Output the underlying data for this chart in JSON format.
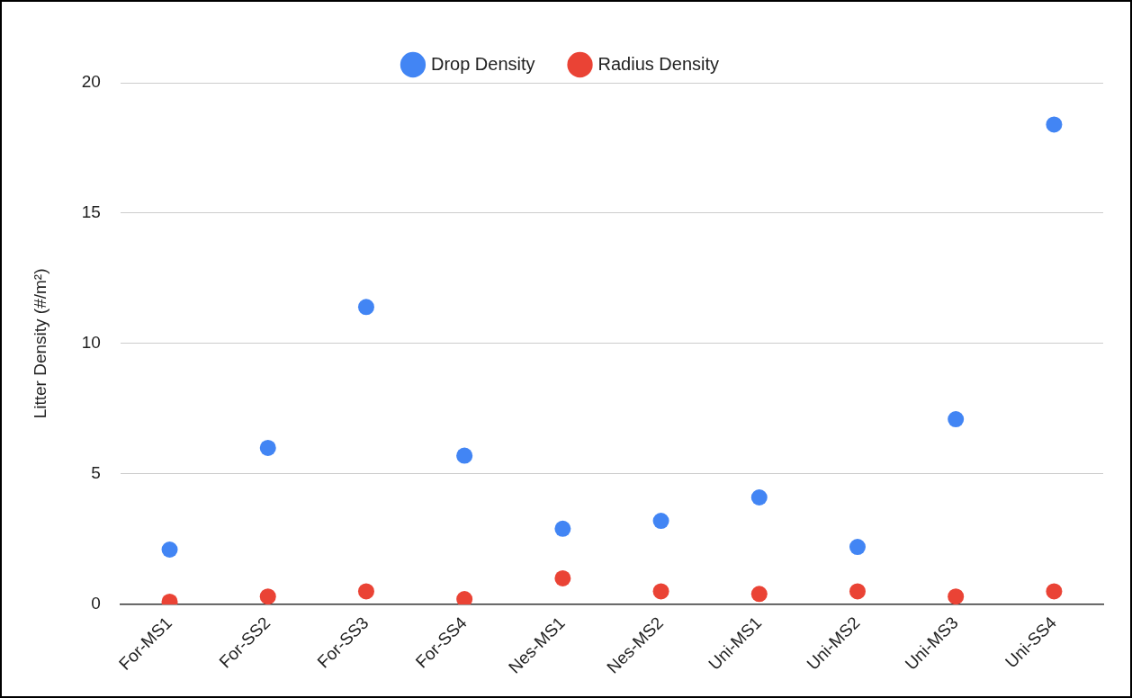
{
  "chart_data": {
    "type": "scatter",
    "ylabel": "Litter Density (#/m²)",
    "categories": [
      "For-MS1",
      "For-SS2",
      "For-SS3",
      "For-SS4",
      "Nes-MS1",
      "Nes-MS2",
      "Uni-MS1",
      "Uni-MS2",
      "Uni-MS3",
      "Uni-SS4"
    ],
    "series": [
      {
        "name": "Drop Density",
        "color": "#4285f4",
        "values": [
          2.1,
          6.0,
          11.4,
          5.7,
          2.9,
          3.2,
          4.1,
          2.2,
          7.1,
          18.4
        ]
      },
      {
        "name": "Radius Density",
        "color": "#ea4335",
        "values": [
          0.1,
          0.3,
          0.5,
          0.2,
          1.0,
          0.5,
          0.4,
          0.5,
          0.3,
          0.5
        ]
      }
    ],
    "ylim": [
      0,
      20
    ],
    "yticks": [
      0,
      5,
      10,
      15,
      20
    ],
    "grid": "y",
    "legend": "top",
    "marker": "circle"
  }
}
